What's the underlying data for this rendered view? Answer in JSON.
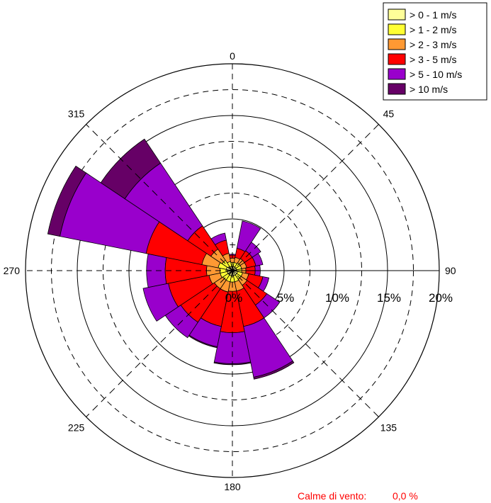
{
  "chart_data": {
    "type": "polar-bar",
    "title": "",
    "direction_labels": [
      "0",
      "45",
      "90",
      "135",
      "180",
      "225",
      "270",
      "315"
    ],
    "radial_tick_labels": [
      "0%",
      "5%",
      "10%",
      "15%",
      "20%"
    ],
    "radial_ticks": [
      0,
      5,
      10,
      15,
      20
    ],
    "rlim": [
      0,
      20
    ],
    "grid": true,
    "legend_position": "top-right",
    "speed_classes": [
      {
        "label": "> 0 - 1   m/s",
        "color": "#ffff99"
      },
      {
        "label": "> 1 - 2   m/s",
        "color": "#ffff33"
      },
      {
        "label": "> 2 - 3   m/s",
        "color": "#ff9933"
      },
      {
        "label": "> 3 - 5   m/s",
        "color": "#ff0000"
      },
      {
        "label": "> 5 - 10 m/s",
        "color": "#9900cc"
      },
      {
        "label": "> 10 m/s",
        "color": "#660066"
      }
    ],
    "sector_width_deg": 22.5,
    "sectors": [
      {
        "direction": 0,
        "cumulative": [
          0.4,
          0.8,
          1.2,
          1.5,
          1.6,
          1.6
        ]
      },
      {
        "direction": 22.5,
        "cumulative": [
          0.4,
          0.8,
          1.3,
          2.2,
          4.9,
          4.9
        ]
      },
      {
        "direction": 45,
        "cumulative": [
          0.4,
          0.9,
          1.4,
          2.3,
          3.3,
          3.3
        ]
      },
      {
        "direction": 67.5,
        "cumulative": [
          0.4,
          0.9,
          1.4,
          2.3,
          3.0,
          3.0
        ]
      },
      {
        "direction": 90,
        "cumulative": [
          0.4,
          0.9,
          1.3,
          2.2,
          2.7,
          2.7
        ]
      },
      {
        "direction": 112.5,
        "cumulative": [
          0.5,
          1.0,
          1.6,
          3.0,
          3.6,
          3.6
        ]
      },
      {
        "direction": 135,
        "cumulative": [
          0.5,
          1.0,
          1.7,
          4.0,
          5.5,
          5.5
        ]
      },
      {
        "direction": 157.5,
        "cumulative": [
          0.5,
          1.1,
          2.0,
          5.5,
          10.5,
          10.7
        ]
      },
      {
        "direction": 180,
        "cumulative": [
          0.5,
          1.1,
          2.0,
          6.0,
          9.0,
          9.1
        ]
      },
      {
        "direction": 202.5,
        "cumulative": [
          0.5,
          1.1,
          2.1,
          5.5,
          7.5,
          7.6
        ]
      },
      {
        "direction": 225,
        "cumulative": [
          0.5,
          1.1,
          2.1,
          6.0,
          7.8,
          7.8
        ]
      },
      {
        "direction": 247.5,
        "cumulative": [
          0.5,
          1.2,
          2.3,
          6.3,
          8.8,
          8.8
        ]
      },
      {
        "direction": 270,
        "cumulative": [
          0.5,
          1.2,
          2.5,
          6.5,
          8.3,
          8.3
        ]
      },
      {
        "direction": 292.5,
        "cumulative": [
          0.6,
          1.4,
          3.0,
          8.5,
          17.0,
          18.2
        ]
      },
      {
        "direction": 315,
        "cumulative": [
          0.5,
          1.2,
          2.5,
          5.2,
          12.5,
          15.3
        ]
      },
      {
        "direction": 337.5,
        "cumulative": [
          0.4,
          0.9,
          1.7,
          3.0,
          3.7,
          3.7
        ]
      }
    ],
    "calm_label": "Calme di vento:",
    "calm_value": "0,0 %",
    "calm_color": "#ff0000"
  }
}
